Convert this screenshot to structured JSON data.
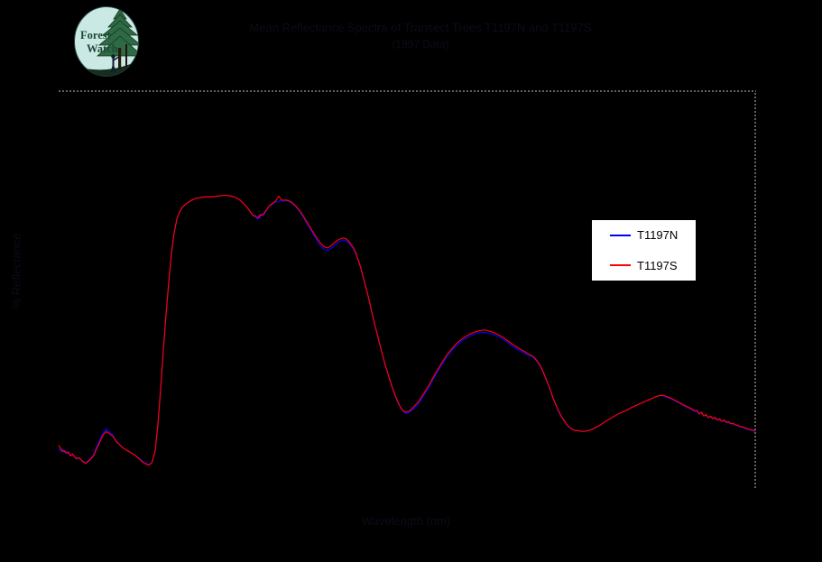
{
  "logo": {
    "line1": "Forest",
    "line2": "Watch",
    "circle_color": "#cbe9e4",
    "text_color": "#1b4a33",
    "tree_color": "#2e6b45"
  },
  "colors": {
    "background": "#000000",
    "hidden_text": "#0e0a18",
    "grid_dotted": "#c0c0c0",
    "legend_bg": "#ffffff",
    "legend_border": "#000000",
    "series_n": "#0000ff",
    "series_s": "#ff0000"
  },
  "chart_data": {
    "type": "line",
    "title": "Mean Reflectance Spectra of Transect Trees T1197N and T1197S",
    "subtitle": "(1997 Data)",
    "xlabel": "Wavelength (nm)",
    "ylabel": "% Reflectance",
    "xlim": [
      400,
      2400
    ],
    "ylim": [
      0,
      60
    ],
    "grid": "dotted gray border on top and right edges only; no interior gridlines",
    "legend_position": "right-center, white box with black border",
    "axis_text_note": "title and axis labels drawn in near-black (illegible on black background); no visible tick labels",
    "x": [
      400,
      405,
      410,
      416,
      422,
      428,
      434,
      440,
      450,
      460,
      470,
      478,
      490,
      500,
      510,
      520,
      528,
      537,
      545,
      555,
      565,
      574,
      585,
      594,
      610,
      620,
      632,
      641,
      650,
      659,
      668,
      677,
      685,
      693,
      700,
      708,
      716,
      724,
      731,
      739,
      747,
      755,
      765,
      776,
      790,
      807,
      824,
      840,
      856,
      871,
      884,
      897,
      908,
      918,
      927,
      936,
      944,
      952,
      958,
      962,
      966,
      970,
      974,
      978,
      982,
      988,
      996,
      1004,
      1014,
      1022,
      1032,
      1040,
      1055,
      1065,
      1073,
      1081,
      1089,
      1098,
      1107,
      1116,
      1125,
      1135,
      1144,
      1152,
      1162,
      1172,
      1182,
      1192,
      1200,
      1208,
      1216,
      1224,
      1232,
      1240,
      1247,
      1254,
      1260,
      1267,
      1273,
      1280,
      1286,
      1293,
      1299,
      1307,
      1315,
      1322,
      1330,
      1338,
      1346,
      1353,
      1361,
      1368,
      1374,
      1381,
      1387,
      1392,
      1397,
      1404,
      1410,
      1417,
      1423,
      1432,
      1441,
      1451,
      1462,
      1472,
      1483,
      1494,
      1506,
      1516,
      1527,
      1540,
      1553,
      1566,
      1579,
      1592,
      1605,
      1615,
      1625,
      1638,
      1651,
      1664,
      1677,
      1690,
      1698,
      1706,
      1713,
      1721,
      1729,
      1738,
      1747,
      1756,
      1765,
      1773,
      1781,
      1789,
      1796,
      1804,
      1812,
      1819,
      1827,
      1835,
      1843,
      1851,
      1858,
      1866,
      1874,
      1883,
      1892,
      1901,
      1910,
      1920,
      1931,
      1942,
      1954,
      1967,
      1980,
      1993,
      2006,
      2019,
      2032,
      2045,
      2058,
      2071,
      2084,
      2097,
      2110,
      2119,
      2128,
      2138,
      2148,
      2158,
      2169,
      2180,
      2190,
      2201,
      2213,
      2226,
      2233,
      2239,
      2246,
      2252,
      2259,
      2265,
      2272,
      2278,
      2285,
      2291,
      2298,
      2304,
      2311,
      2317,
      2324,
      2330,
      2337,
      2343,
      2350,
      2356,
      2363,
      2369,
      2376,
      2382,
      2391,
      2400
    ],
    "series": [
      {
        "name": "T1197N",
        "color": "#0000ff",
        "values": [
          6.2,
          5.9,
          6.1,
          5.6,
          5.8,
          5.4,
          5.3,
          5.2,
          4.9,
          4.7,
          4.3,
          4.1,
          4.6,
          5.3,
          6.6,
          7.7,
          8.6,
          9.2,
          8.8,
          8.3,
          7.4,
          6.9,
          6.3,
          6.0,
          5.5,
          5.2,
          4.7,
          4.3,
          4.0,
          3.8,
          4.1,
          5.8,
          9.8,
          15.3,
          20.6,
          26.2,
          31.2,
          35.7,
          38.5,
          40.7,
          41.8,
          42.5,
          43.0,
          43.4,
          43.8,
          44.0,
          44.1,
          44.1,
          44.2,
          44.3,
          44.3,
          44.2,
          44.0,
          43.7,
          43.3,
          42.8,
          42.3,
          41.7,
          41.3,
          41.1,
          41.3,
          40.7,
          41.2,
          40.9,
          41.5,
          41.3,
          42.0,
          42.6,
          43.0,
          43.3,
          43.4,
          43.5,
          43.5,
          43.3,
          43.0,
          42.6,
          42.1,
          41.4,
          40.6,
          39.8,
          39.0,
          38.1,
          37.3,
          36.7,
          36.2,
          36.0,
          36.3,
          36.8,
          37.1,
          37.4,
          37.6,
          37.5,
          37.2,
          36.7,
          36.2,
          35.4,
          34.5,
          33.4,
          32.2,
          30.8,
          29.6,
          28.1,
          26.7,
          24.9,
          23.3,
          21.8,
          20.2,
          18.6,
          17.3,
          16.1,
          14.9,
          13.9,
          13.1,
          12.4,
          11.9,
          11.7,
          11.5,
          11.6,
          11.8,
          12.1,
          12.4,
          12.9,
          13.6,
          14.4,
          15.3,
          16.3,
          17.3,
          18.3,
          19.3,
          20.1,
          20.8,
          21.6,
          22.2,
          22.7,
          23.1,
          23.4,
          23.6,
          23.7,
          23.7,
          23.5,
          23.3,
          23.0,
          22.6,
          22.1,
          21.8,
          21.5,
          21.3,
          21.0,
          20.8,
          20.6,
          20.3,
          20.1,
          19.8,
          19.3,
          18.7,
          17.9,
          17.0,
          16.0,
          14.9,
          13.8,
          12.8,
          11.8,
          11.0,
          10.4,
          9.8,
          9.4,
          9.1,
          8.9,
          8.9,
          8.8,
          8.8,
          8.9,
          9.1,
          9.4,
          9.7,
          10.2,
          10.6,
          11.0,
          11.4,
          11.7,
          12.0,
          12.4,
          12.7,
          13.0,
          13.3,
          13.6,
          13.9,
          14.1,
          14.2,
          14.1,
          13.9,
          13.7,
          13.4,
          13.1,
          12.8,
          12.5,
          12.2,
          11.8,
          11.7,
          11.5,
          11.45,
          11.2,
          11.15,
          10.95,
          10.9,
          10.75,
          10.7,
          10.55,
          10.5,
          10.35,
          10.3,
          10.15,
          10.05,
          9.95,
          9.85,
          9.75,
          9.6,
          9.5,
          9.35,
          9.3,
          9.1,
          9.05,
          8.9,
          8.75
        ]
      },
      {
        "name": "T1197S",
        "color": "#ff0000",
        "values": [
          6.7,
          6.3,
          5.8,
          5.9,
          5.5,
          5.7,
          5.1,
          5.4,
          4.7,
          4.8,
          4.2,
          4.0,
          4.5,
          5.1,
          6.3,
          7.4,
          8.3,
          8.8,
          8.5,
          8.1,
          7.3,
          6.8,
          6.3,
          6.0,
          5.5,
          5.2,
          4.6,
          4.2,
          3.9,
          3.7,
          4.1,
          5.8,
          9.8,
          15.3,
          20.6,
          26.2,
          31.2,
          35.7,
          38.5,
          40.7,
          41.8,
          42.5,
          43.0,
          43.4,
          43.8,
          44.0,
          44.1,
          44.1,
          44.2,
          44.3,
          44.3,
          44.2,
          44.0,
          43.7,
          43.3,
          42.8,
          42.3,
          41.7,
          41.3,
          41.3,
          41.1,
          41.0,
          40.9,
          41.4,
          41.3,
          41.5,
          42.1,
          42.7,
          43.1,
          43.4,
          44.2,
          43.6,
          43.6,
          43.4,
          43.1,
          42.7,
          42.2,
          41.6,
          40.8,
          40.0,
          39.2,
          38.4,
          37.7,
          37.1,
          36.6,
          36.4,
          36.7,
          37.2,
          37.5,
          37.75,
          37.9,
          37.8,
          37.45,
          36.9,
          36.4,
          35.55,
          34.6,
          33.5,
          32.3,
          30.9,
          29.7,
          28.2,
          26.8,
          25.0,
          23.4,
          21.9,
          20.3,
          18.7,
          17.4,
          16.2,
          15.0,
          14.0,
          13.2,
          12.5,
          12.0,
          11.8,
          11.7,
          11.8,
          12.0,
          12.35,
          12.7,
          13.2,
          13.9,
          14.7,
          15.6,
          16.6,
          17.6,
          18.6,
          19.6,
          20.4,
          21.1,
          21.9,
          22.5,
          23.0,
          23.4,
          23.7,
          23.9,
          24.0,
          24.05,
          23.85,
          23.6,
          23.3,
          22.9,
          22.4,
          22.1,
          21.8,
          21.6,
          21.3,
          21.05,
          20.8,
          20.5,
          20.25,
          19.95,
          19.45,
          18.85,
          18.0,
          17.1,
          16.1,
          15.0,
          13.9,
          12.9,
          11.9,
          11.1,
          10.45,
          9.85,
          9.45,
          9.15,
          8.9,
          8.9,
          8.8,
          8.8,
          8.9,
          9.1,
          9.4,
          9.7,
          10.2,
          10.6,
          11.0,
          11.4,
          11.7,
          12.0,
          12.4,
          12.7,
          13.0,
          13.3,
          13.6,
          13.9,
          14.1,
          14.2,
          14.2,
          14.0,
          13.8,
          13.5,
          13.2,
          12.9,
          12.6,
          12.3,
          11.9,
          11.95,
          11.4,
          11.7,
          11.1,
          11.35,
          10.85,
          11.1,
          10.7,
          10.9,
          10.5,
          10.7,
          10.3,
          10.5,
          10.15,
          10.25,
          9.95,
          10.0,
          9.75,
          9.75,
          9.5,
          9.5,
          9.35,
          9.25,
          9.1,
          9.0,
          8.85
        ]
      }
    ]
  },
  "legend": {
    "entries": [
      {
        "label": "T1197N",
        "color": "#0000ff"
      },
      {
        "label": "T1197S",
        "color": "#ff0000"
      }
    ]
  }
}
